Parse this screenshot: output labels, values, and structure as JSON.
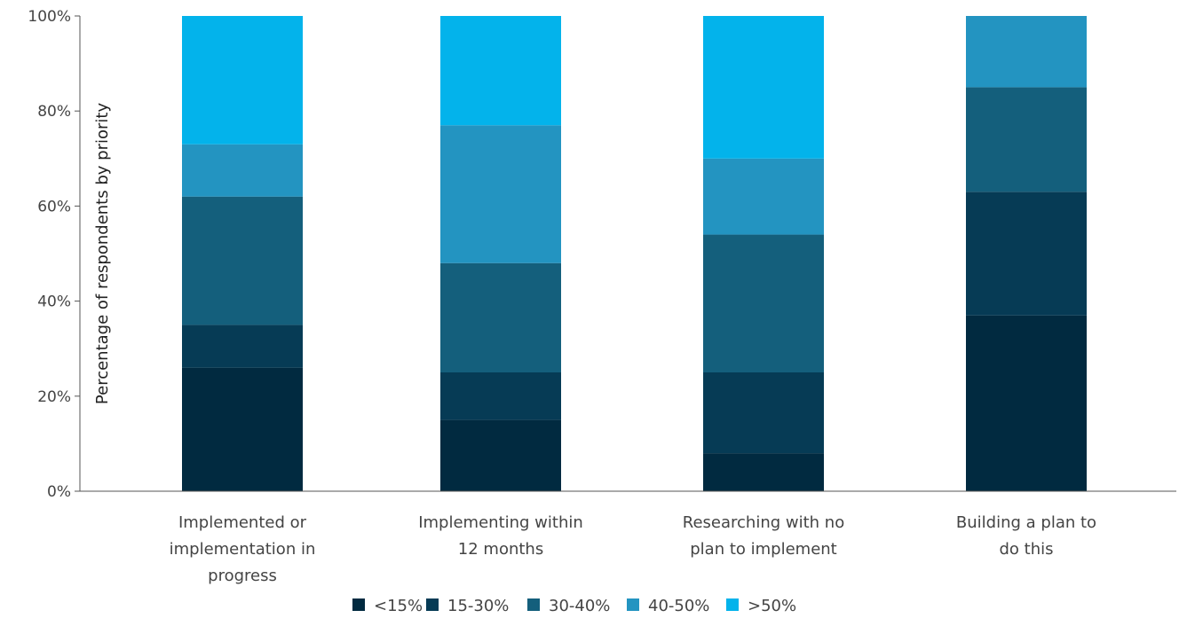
{
  "chart_data": {
    "type": "bar",
    "stacked": true,
    "title": "",
    "xlabel": "",
    "ylabel": "Percentage of respondents by priority",
    "ylim": [
      0,
      100
    ],
    "yticks": [
      "0%",
      "20%",
      "40%",
      "60%",
      "80%",
      "100%"
    ],
    "categories": [
      [
        "Implemented or",
        "implementation in",
        "progress"
      ],
      [
        "Implementing within",
        "12 months"
      ],
      [
        "Researching with no",
        "plan to implement"
      ],
      [
        "Building a plan to",
        "do this"
      ]
    ],
    "series": [
      {
        "name": "<15%",
        "color": "#012a40",
        "values": [
          26,
          15,
          8,
          37
        ]
      },
      {
        "name": "15-30%",
        "color": "#063b55",
        "values": [
          9,
          10,
          17,
          26
        ]
      },
      {
        "name": "30-40%",
        "color": "#145f7c",
        "values": [
          27,
          23,
          29,
          22
        ]
      },
      {
        "name": "40-50%",
        "color": "#2394c1",
        "values": [
          11,
          29,
          16,
          15
        ]
      },
      {
        "name": ">50%",
        "color": "#03b3eb",
        "values": [
          27,
          23,
          30,
          0
        ]
      }
    ],
    "grid": false,
    "legend_position": "bottom"
  }
}
